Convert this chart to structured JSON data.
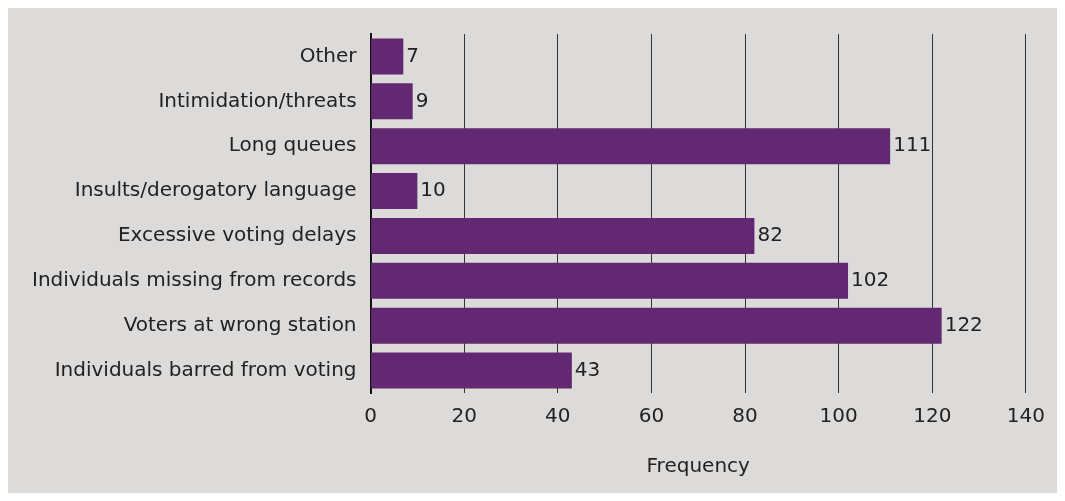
{
  "chart_data": {
    "type": "bar",
    "orientation": "horizontal",
    "xlabel": "Frequency",
    "categories": [
      "Other",
      "Intimidation/threats",
      "Long queues",
      "Insults/derogatory language",
      "Excessive voting delays",
      "Individuals missing from records",
      "Voters at wrong station",
      "Individuals barred from voting"
    ],
    "values": [
      7,
      9,
      111,
      10,
      82,
      102,
      122,
      43
    ],
    "color": "#622872",
    "xlim": [
      0,
      140
    ],
    "xticks": [
      0,
      20,
      40,
      60,
      80,
      100,
      120,
      140
    ],
    "grid": "x",
    "data_labels": true,
    "legend": false
  }
}
